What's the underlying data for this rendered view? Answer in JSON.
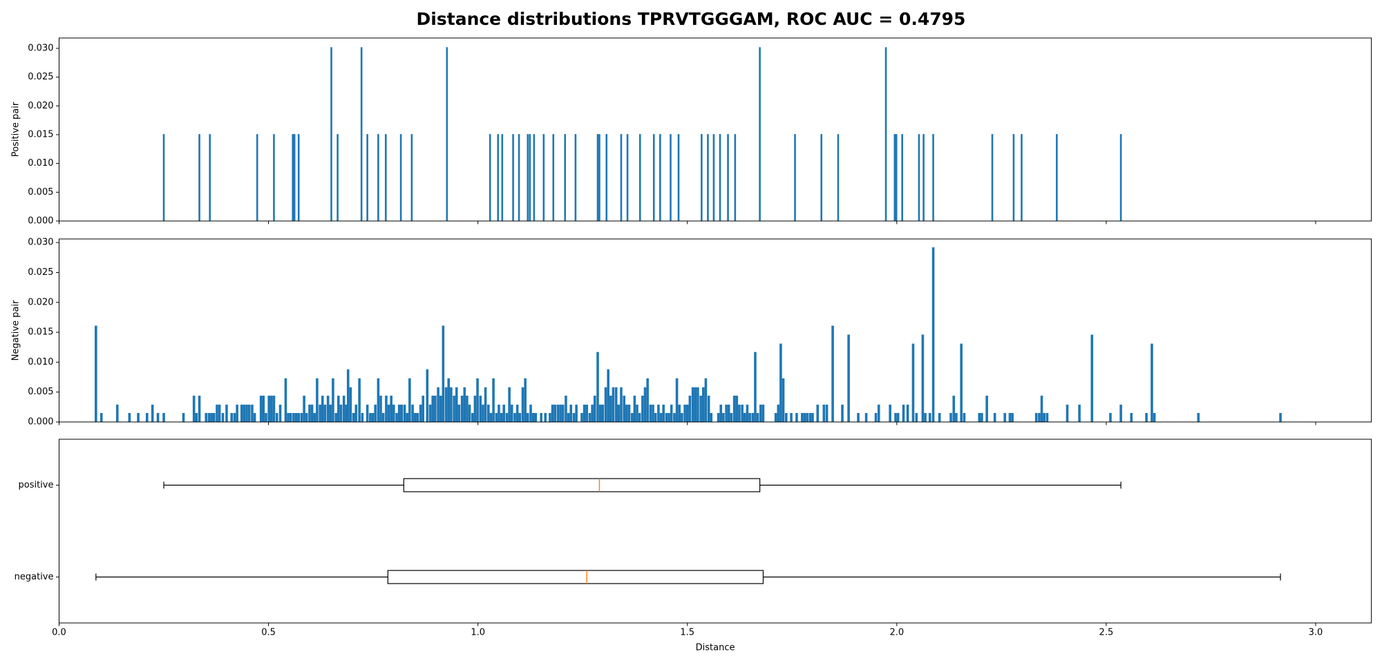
{
  "title": "Distance distributions TPRVTGGGAM, ROC AUC = 0.4795",
  "chart_data": [
    {
      "type": "bar",
      "ylabel": "Positive pair",
      "color": "#1f77b4",
      "x": [
        0.25,
        0.335,
        0.36,
        0.473,
        0.513,
        0.558,
        0.562,
        0.572,
        0.65,
        0.665,
        0.722,
        0.736,
        0.762,
        0.78,
        0.816,
        0.842,
        0.926,
        1.029,
        1.048,
        1.058,
        1.084,
        1.098,
        1.119,
        1.124,
        1.134,
        1.157,
        1.18,
        1.208,
        1.233,
        1.286,
        1.29,
        1.307,
        1.342,
        1.357,
        1.387,
        1.42,
        1.435,
        1.46,
        1.479,
        1.534,
        1.549,
        1.563,
        1.578,
        1.597,
        1.614,
        1.673,
        1.757,
        1.82,
        1.86,
        1.974,
        1.995,
        1.999,
        2.013,
        2.053,
        2.064,
        2.087,
        2.228,
        2.279,
        2.298,
        2.382,
        2.535
      ],
      "values": [
        0.0151,
        0.0151,
        0.0151,
        0.0151,
        0.0151,
        0.0151,
        0.0151,
        0.0151,
        0.0302,
        0.0151,
        0.0302,
        0.0151,
        0.0151,
        0.0151,
        0.0151,
        0.0151,
        0.0302,
        0.0151,
        0.0151,
        0.0151,
        0.0151,
        0.0151,
        0.0151,
        0.0151,
        0.0151,
        0.0151,
        0.0151,
        0.0151,
        0.0151,
        0.0151,
        0.0151,
        0.0151,
        0.0151,
        0.0151,
        0.0151,
        0.0151,
        0.0151,
        0.0151,
        0.0151,
        0.0151,
        0.0151,
        0.0151,
        0.0151,
        0.0151,
        0.0151,
        0.0302,
        0.0151,
        0.0151,
        0.0151,
        0.0302,
        0.0151,
        0.0151,
        0.0151,
        0.0151,
        0.0151,
        0.0151,
        0.0151,
        0.0151,
        0.0151,
        0.0151,
        0.0151
      ],
      "ylim": [
        0,
        0.0318
      ],
      "yticks": [
        {
          "value": 0,
          "label": "0.000"
        },
        {
          "value": 0.005,
          "label": "0.005"
        },
        {
          "value": 0.01,
          "label": "0.010"
        },
        {
          "value": 0.015,
          "label": "0.015"
        },
        {
          "value": 0.02,
          "label": "0.020"
        },
        {
          "value": 0.025,
          "label": "0.025"
        },
        {
          "value": 0.03,
          "label": "0.030"
        }
      ]
    },
    {
      "type": "bar",
      "ylabel": "Negative pair",
      "color": "#1f77b4",
      "x": [
        0.088,
        0.101,
        0.139,
        0.168,
        0.189,
        0.21,
        0.223,
        0.236,
        0.25,
        0.297,
        0.322,
        0.328,
        0.335,
        0.351,
        0.358,
        0.364,
        0.37,
        0.377,
        0.383,
        0.391,
        0.4,
        0.412,
        0.419,
        0.425,
        0.436,
        0.442,
        0.448,
        0.454,
        0.461,
        0.467,
        0.482,
        0.488,
        0.494,
        0.501,
        0.507,
        0.513,
        0.52,
        0.528,
        0.541,
        0.547,
        0.553,
        0.56,
        0.566,
        0.572,
        0.579,
        0.585,
        0.591,
        0.598,
        0.604,
        0.61,
        0.616,
        0.623,
        0.629,
        0.635,
        0.642,
        0.648,
        0.654,
        0.661,
        0.667,
        0.673,
        0.68,
        0.686,
        0.69,
        0.696,
        0.703,
        0.709,
        0.717,
        0.724,
        0.736,
        0.743,
        0.749,
        0.755,
        0.762,
        0.768,
        0.774,
        0.781,
        0.787,
        0.793,
        0.799,
        0.806,
        0.812,
        0.818,
        0.825,
        0.831,
        0.837,
        0.844,
        0.85,
        0.856,
        0.863,
        0.869,
        0.879,
        0.886,
        0.892,
        0.898,
        0.905,
        0.911,
        0.917,
        0.924,
        0.93,
        0.936,
        0.943,
        0.949,
        0.955,
        0.962,
        0.968,
        0.974,
        0.98,
        0.987,
        0.993,
        0.999,
        1.006,
        1.012,
        1.018,
        1.025,
        1.031,
        1.037,
        1.044,
        1.05,
        1.056,
        1.062,
        1.069,
        1.075,
        1.081,
        1.088,
        1.094,
        1.1,
        1.107,
        1.113,
        1.119,
        1.126,
        1.132,
        1.138,
        1.151,
        1.161,
        1.172,
        1.178,
        1.184,
        1.191,
        1.197,
        1.203,
        1.21,
        1.216,
        1.222,
        1.229,
        1.235,
        1.248,
        1.254,
        1.26,
        1.267,
        1.273,
        1.279,
        1.286,
        1.292,
        1.298,
        1.305,
        1.311,
        1.317,
        1.323,
        1.33,
        1.336,
        1.342,
        1.349,
        1.355,
        1.361,
        1.368,
        1.374,
        1.38,
        1.386,
        1.393,
        1.399,
        1.405,
        1.412,
        1.418,
        1.424,
        1.431,
        1.437,
        1.443,
        1.45,
        1.456,
        1.462,
        1.469,
        1.475,
        1.481,
        1.487,
        1.494,
        1.5,
        1.506,
        1.513,
        1.519,
        1.525,
        1.532,
        1.538,
        1.544,
        1.551,
        1.557,
        1.574,
        1.58,
        1.586,
        1.593,
        1.599,
        1.605,
        1.612,
        1.618,
        1.624,
        1.631,
        1.637,
        1.643,
        1.649,
        1.656,
        1.662,
        1.668,
        1.675,
        1.681,
        1.711,
        1.717,
        1.723,
        1.729,
        1.736,
        1.748,
        1.761,
        1.774,
        1.78,
        1.786,
        1.793,
        1.799,
        1.811,
        1.826,
        1.833,
        1.847,
        1.87,
        1.885,
        1.908,
        1.927,
        1.95,
        1.957,
        1.984,
        1.997,
        2.003,
        2.016,
        2.026,
        2.039,
        2.047,
        2.062,
        2.068,
        2.079,
        2.087,
        2.102,
        2.129,
        2.136,
        2.142,
        2.154,
        2.161,
        2.197,
        2.203,
        2.215,
        2.234,
        2.258,
        2.27,
        2.276,
        2.333,
        2.34,
        2.346,
        2.352,
        2.359,
        2.407,
        2.436,
        2.466,
        2.51,
        2.535,
        2.56,
        2.596,
        2.609,
        2.615,
        2.72,
        2.916
      ],
      "values": [
        0.0161,
        0.0015,
        0.0029,
        0.0015,
        0.0015,
        0.0015,
        0.0029,
        0.0015,
        0.0015,
        0.0015,
        0.0044,
        0.0015,
        0.0044,
        0.0015,
        0.0015,
        0.0015,
        0.0015,
        0.0029,
        0.0029,
        0.0015,
        0.0029,
        0.0015,
        0.0015,
        0.0029,
        0.0029,
        0.0029,
        0.0029,
        0.0029,
        0.0029,
        0.0015,
        0.0044,
        0.0044,
        0.0015,
        0.0044,
        0.0044,
        0.0044,
        0.0015,
        0.0029,
        0.0073,
        0.0015,
        0.0015,
        0.0015,
        0.0015,
        0.0015,
        0.0015,
        0.0044,
        0.0015,
        0.0029,
        0.0029,
        0.0015,
        0.0073,
        0.0029,
        0.0044,
        0.0029,
        0.0044,
        0.0029,
        0.0073,
        0.0015,
        0.0044,
        0.0029,
        0.0044,
        0.0029,
        0.0088,
        0.0058,
        0.0015,
        0.0029,
        0.0073,
        0.0015,
        0.0029,
        0.0015,
        0.0015,
        0.0029,
        0.0073,
        0.0044,
        0.0015,
        0.0044,
        0.0029,
        0.0044,
        0.0029,
        0.0015,
        0.0029,
        0.0029,
        0.0029,
        0.0015,
        0.0073,
        0.0029,
        0.0015,
        0.0015,
        0.0029,
        0.0044,
        0.0088,
        0.0029,
        0.0044,
        0.0044,
        0.0058,
        0.0044,
        0.0161,
        0.0058,
        0.0073,
        0.0058,
        0.0044,
        0.0058,
        0.0029,
        0.0044,
        0.0058,
        0.0044,
        0.0029,
        0.0015,
        0.0044,
        0.0073,
        0.0044,
        0.0029,
        0.0058,
        0.0029,
        0.0015,
        0.0073,
        0.0015,
        0.0029,
        0.0015,
        0.0029,
        0.0015,
        0.0058,
        0.0029,
        0.0015,
        0.0029,
        0.0015,
        0.0058,
        0.0073,
        0.0015,
        0.0029,
        0.0015,
        0.0015,
        0.0015,
        0.0015,
        0.0015,
        0.0029,
        0.0029,
        0.0029,
        0.0029,
        0.0029,
        0.0044,
        0.0015,
        0.0029,
        0.0015,
        0.0029,
        0.0015,
        0.0029,
        0.0029,
        0.0015,
        0.0029,
        0.0044,
        0.0117,
        0.0029,
        0.0029,
        0.0058,
        0.0088,
        0.0044,
        0.0058,
        0.0058,
        0.0029,
        0.0058,
        0.0044,
        0.0029,
        0.0029,
        0.0015,
        0.0044,
        0.0029,
        0.0015,
        0.0044,
        0.0058,
        0.0073,
        0.0029,
        0.0029,
        0.0015,
        0.0029,
        0.0015,
        0.0029,
        0.0015,
        0.0015,
        0.0029,
        0.0015,
        0.0073,
        0.0029,
        0.0015,
        0.0029,
        0.0029,
        0.0044,
        0.0058,
        0.0058,
        0.0058,
        0.0044,
        0.0058,
        0.0073,
        0.0044,
        0.0015,
        0.0015,
        0.0029,
        0.0015,
        0.0029,
        0.0029,
        0.0015,
        0.0044,
        0.0044,
        0.0029,
        0.0029,
        0.0015,
        0.0029,
        0.0015,
        0.0015,
        0.0117,
        0.0015,
        0.0029,
        0.0029,
        0.0015,
        0.0029,
        0.0131,
        0.0073,
        0.0015,
        0.0015,
        0.0015,
        0.0015,
        0.0015,
        0.0015,
        0.0015,
        0.0015,
        0.0029,
        0.0029,
        0.0029,
        0.0161,
        0.0029,
        0.0146,
        0.0015,
        0.0015,
        0.0015,
        0.0029,
        0.0029,
        0.0015,
        0.0015,
        0.0029,
        0.0029,
        0.0131,
        0.0015,
        0.0146,
        0.0015,
        0.0015,
        0.0292,
        0.0015,
        0.0015,
        0.0044,
        0.0015,
        0.0131,
        0.0015,
        0.0015,
        0.0015,
        0.0044,
        0.0015,
        0.0015,
        0.0015,
        0.0015,
        0.0015,
        0.0015,
        0.0044,
        0.0015,
        0.0015,
        0.0029,
        0.0029,
        0.0146,
        0.0015,
        0.0029,
        0.0015,
        0.0015,
        0.0131,
        0.0015,
        0.0015,
        0.0015
      ],
      "ylim": [
        0,
        0.0306
      ],
      "yticks": [
        {
          "value": 0,
          "label": "0.000"
        },
        {
          "value": 0.005,
          "label": "0.005"
        },
        {
          "value": 0.01,
          "label": "0.010"
        },
        {
          "value": 0.015,
          "label": "0.015"
        },
        {
          "value": 0.02,
          "label": "0.020"
        },
        {
          "value": 0.025,
          "label": "0.025"
        },
        {
          "value": 0.03,
          "label": "0.030"
        }
      ]
    },
    {
      "type": "box",
      "xlabel": "Distance",
      "color": "#000000",
      "median_color": "#ff7f0e",
      "categories": [
        "positive",
        "negative"
      ],
      "boxes": [
        {
          "whislo": 0.25,
          "q1": 0.823,
          "med": 1.29,
          "q3": 1.673,
          "whishi": 2.535
        },
        {
          "whislo": 0.088,
          "q1": 0.785,
          "med": 1.26,
          "q3": 1.681,
          "whishi": 2.916
        }
      ],
      "xlim": [
        0,
        3.133
      ],
      "xticks": [
        {
          "value": 0,
          "label": "0.0"
        },
        {
          "value": 0.5,
          "label": "0.5"
        },
        {
          "value": 1,
          "label": "1.0"
        },
        {
          "value": 1.5,
          "label": "1.5"
        },
        {
          "value": 2,
          "label": "2.0"
        },
        {
          "value": 2.5,
          "label": "2.5"
        },
        {
          "value": 3,
          "label": "3.0"
        }
      ]
    }
  ]
}
